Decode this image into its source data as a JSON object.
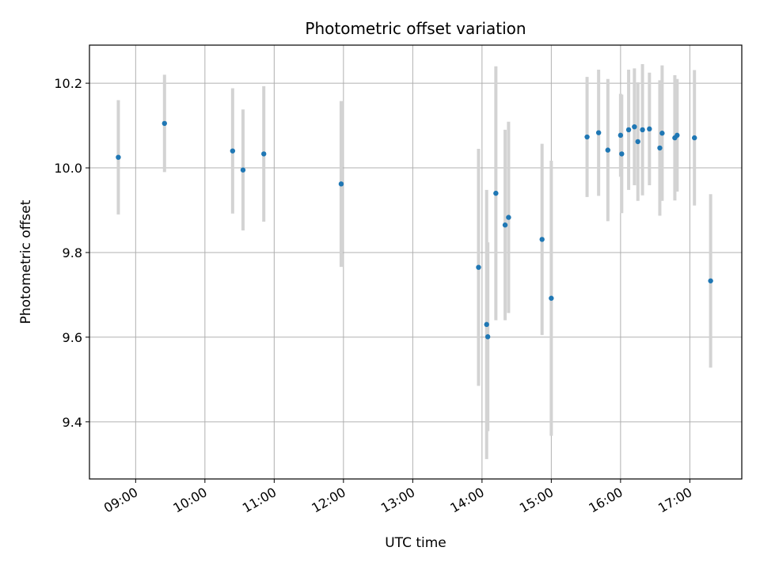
{
  "chart_data": {
    "type": "scatter",
    "title": "Photometric offset variation",
    "xlabel": "UTC time",
    "ylabel": "Photometric offset",
    "xlim": [
      "08:20",
      "17:45"
    ],
    "ylim": [
      9.265,
      10.29
    ],
    "x_ticks": [
      "09:00",
      "10:00",
      "11:00",
      "12:00",
      "13:00",
      "14:00",
      "15:00",
      "16:00",
      "17:00"
    ],
    "y_ticks": [
      9.4,
      9.6,
      9.8,
      10.0,
      10.2
    ],
    "grid": true,
    "colors": {
      "point": "#1f77b4",
      "errorbar": "#d3d3d3",
      "grid": "#b0b0b0"
    },
    "series": [
      {
        "points": [
          {
            "x": "08:45",
            "y": 10.025,
            "err": 0.135
          },
          {
            "x": "09:25",
            "y": 10.105,
            "err": 0.115
          },
          {
            "x": "10:24",
            "y": 10.04,
            "err": 0.148
          },
          {
            "x": "10:33",
            "y": 9.995,
            "err": 0.143
          },
          {
            "x": "10:51",
            "y": 10.033,
            "err": 0.16
          },
          {
            "x": "11:58",
            "y": 9.962,
            "err": 0.196
          },
          {
            "x": "13:57",
            "y": 9.765,
            "err": 0.28
          },
          {
            "x": "14:04",
            "y": 9.63,
            "err": 0.318
          },
          {
            "x": "14:05",
            "y": 9.601,
            "err": 0.223
          },
          {
            "x": "14:12",
            "y": 9.94,
            "err": 0.3
          },
          {
            "x": "14:20",
            "y": 9.865,
            "err": 0.225
          },
          {
            "x": "14:23",
            "y": 9.883,
            "err": 0.226
          },
          {
            "x": "14:52",
            "y": 9.831,
            "err": 0.226
          },
          {
            "x": "15:00",
            "y": 9.692,
            "err": 0.325
          },
          {
            "x": "15:31",
            "y": 10.073,
            "err": 0.142
          },
          {
            "x": "15:41",
            "y": 10.083,
            "err": 0.149
          },
          {
            "x": "15:49",
            "y": 10.042,
            "err": 0.168
          },
          {
            "x": "16:00",
            "y": 10.077,
            "err": 0.098
          },
          {
            "x": "16:01",
            "y": 10.033,
            "err": 0.14
          },
          {
            "x": "16:07",
            "y": 10.09,
            "err": 0.142
          },
          {
            "x": "16:12",
            "y": 10.097,
            "err": 0.138
          },
          {
            "x": "16:15",
            "y": 10.062,
            "err": 0.14
          },
          {
            "x": "16:19",
            "y": 10.09,
            "err": 0.155
          },
          {
            "x": "16:25",
            "y": 10.092,
            "err": 0.133
          },
          {
            "x": "16:34",
            "y": 10.047,
            "err": 0.16
          },
          {
            "x": "16:36",
            "y": 10.082,
            "err": 0.16
          },
          {
            "x": "16:47",
            "y": 10.071,
            "err": 0.148
          },
          {
            "x": "16:49",
            "y": 10.077,
            "err": 0.133
          },
          {
            "x": "17:04",
            "y": 10.071,
            "err": 0.16
          },
          {
            "x": "17:18",
            "y": 9.733,
            "err": 0.205
          }
        ]
      }
    ]
  }
}
